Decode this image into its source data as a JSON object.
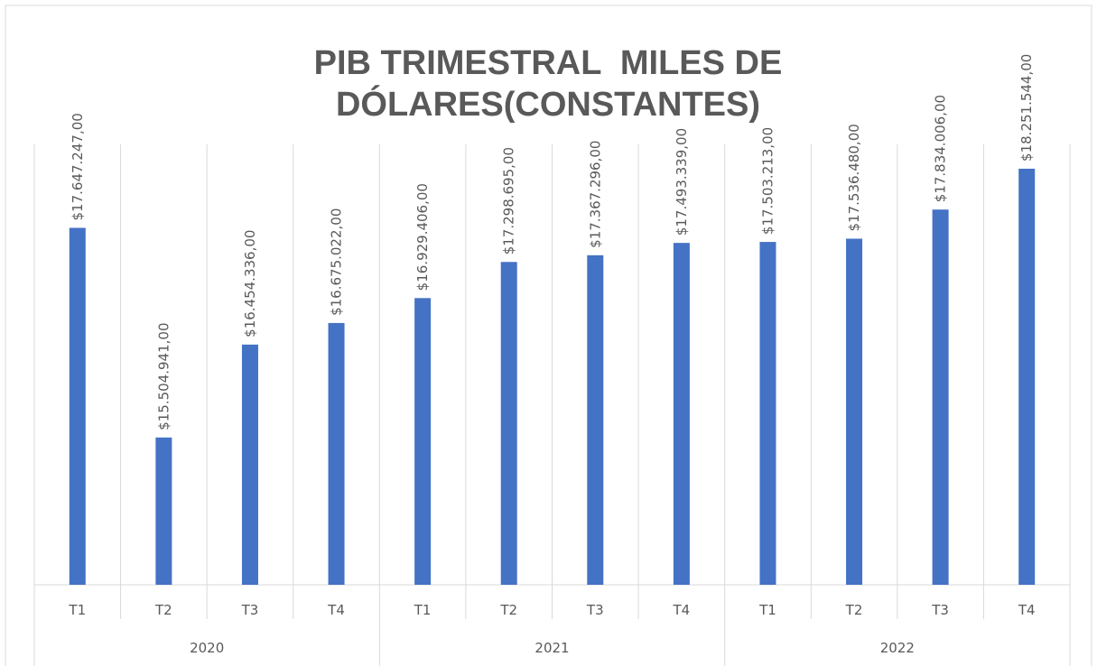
{
  "chart_data": {
    "type": "bar",
    "title": [
      "PIB TRIMESTRAL  MILES DE",
      "DÓLARES(CONSTANTES)"
    ],
    "groups": [
      {
        "label": "2020",
        "categories": [
          "T1",
          "T2",
          "T3",
          "T4"
        ]
      },
      {
        "label": "2021",
        "categories": [
          "T1",
          "T2",
          "T3",
          "T4"
        ]
      },
      {
        "label": "2022",
        "categories": [
          "T1",
          "T2",
          "T3",
          "T4"
        ]
      }
    ],
    "values": [
      17647247,
      15504941,
      16454336,
      16675022,
      16929406,
      17298695,
      17367296,
      17493339,
      17503213,
      17536480,
      17834006,
      18251544
    ],
    "value_labels": [
      "$17.647.247,00",
      "$15.504.941,00",
      "$16.454.336,00",
      "$16.675.022,00",
      "$16.929.406,00",
      "$17.298.695,00",
      "$17.367.296,00",
      "$17.493.339,00",
      "$17.503.213,00",
      "$17.536.480,00",
      "$17.834.006,00",
      "$18.251.544,00"
    ],
    "color": "#4472c4",
    "ylim": [
      14000000,
      18500000
    ],
    "grid": true
  }
}
